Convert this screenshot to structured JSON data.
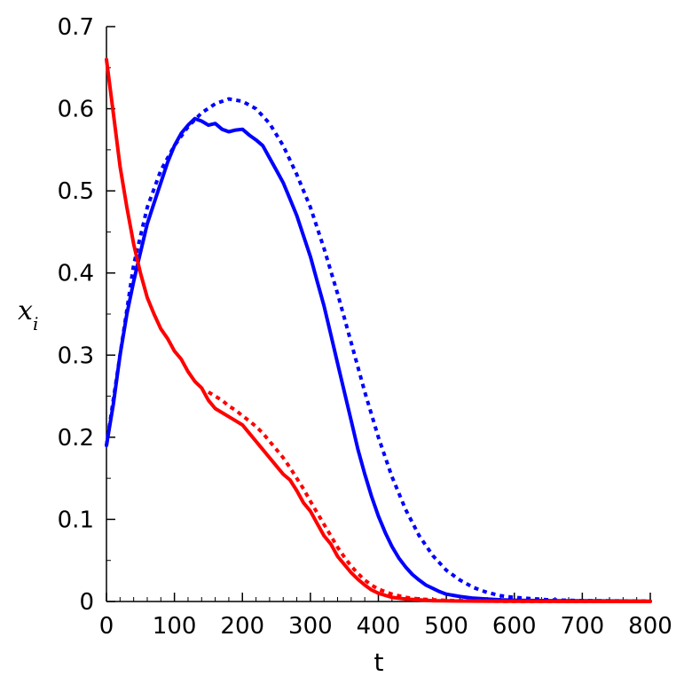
{
  "chart_data": {
    "type": "line",
    "title": "",
    "xlabel": "t",
    "ylabel": "x",
    "ylabel_subscript": "i",
    "xlim": [
      0,
      800
    ],
    "ylim": [
      0,
      0.7
    ],
    "xticks": [
      0,
      100,
      200,
      300,
      400,
      500,
      600,
      700,
      800
    ],
    "xtick_labels": [
      "0",
      "100",
      "200",
      "300",
      "400",
      "500",
      "600",
      "700",
      "800"
    ],
    "yticks": [
      0,
      0.1,
      0.2,
      0.3,
      0.4,
      0.5,
      0.6,
      0.7
    ],
    "ytick_labels": [
      "0",
      "0.1",
      "0.2",
      "0.3",
      "0.4",
      "0.5",
      "0.6",
      "0.7"
    ],
    "grid": false,
    "legend": "none",
    "series": [
      {
        "color": "#0000ff",
        "style": "solid",
        "x": [
          0,
          10,
          20,
          30,
          40,
          50,
          60,
          70,
          80,
          90,
          100,
          110,
          120,
          130,
          140,
          150,
          160,
          170,
          180,
          190,
          200,
          210,
          220,
          230,
          240,
          250,
          260,
          270,
          280,
          290,
          300,
          310,
          320,
          330,
          340,
          350,
          360,
          370,
          380,
          390,
          400,
          410,
          420,
          430,
          440,
          450,
          460,
          470,
          480,
          490,
          500,
          520,
          540,
          560,
          580,
          600,
          650,
          700,
          750,
          800
        ],
        "y": [
          0.19,
          0.24,
          0.3,
          0.35,
          0.39,
          0.425,
          0.46,
          0.485,
          0.51,
          0.535,
          0.555,
          0.57,
          0.58,
          0.588,
          0.585,
          0.58,
          0.582,
          0.575,
          0.572,
          0.574,
          0.575,
          0.568,
          0.562,
          0.555,
          0.54,
          0.525,
          0.51,
          0.49,
          0.47,
          0.445,
          0.42,
          0.39,
          0.36,
          0.325,
          0.29,
          0.255,
          0.22,
          0.185,
          0.155,
          0.128,
          0.104,
          0.084,
          0.067,
          0.053,
          0.042,
          0.033,
          0.026,
          0.02,
          0.016,
          0.012,
          0.009,
          0.006,
          0.004,
          0.003,
          0.002,
          0.0015,
          0.001,
          0.0008,
          0.0005,
          0.0003
        ]
      },
      {
        "color": "#0000ff",
        "style": "dotted",
        "x": [
          0,
          20,
          40,
          60,
          80,
          100,
          120,
          140,
          160,
          180,
          200,
          220,
          240,
          260,
          280,
          300,
          320,
          340,
          360,
          380,
          400,
          420,
          440,
          460,
          480,
          500,
          520,
          540,
          560,
          580,
          600,
          650,
          700,
          750,
          800
        ],
        "y": [
          0.19,
          0.3,
          0.41,
          0.48,
          0.525,
          0.555,
          0.578,
          0.595,
          0.606,
          0.612,
          0.609,
          0.6,
          0.582,
          0.555,
          0.52,
          0.48,
          0.43,
          0.375,
          0.315,
          0.255,
          0.2,
          0.152,
          0.112,
          0.08,
          0.056,
          0.038,
          0.026,
          0.017,
          0.011,
          0.007,
          0.005,
          0.002,
          0.001,
          0.0006,
          0.0003
        ]
      },
      {
        "color": "#ff0000",
        "style": "solid",
        "x": [
          0,
          10,
          20,
          30,
          40,
          50,
          60,
          70,
          80,
          90,
          100,
          110,
          120,
          130,
          140,
          150,
          160,
          170,
          180,
          190,
          200,
          210,
          220,
          230,
          240,
          250,
          260,
          270,
          280,
          290,
          300,
          310,
          320,
          330,
          340,
          350,
          360,
          370,
          380,
          390,
          400,
          420,
          440,
          460,
          480,
          500,
          550,
          600,
          700,
          800
        ],
        "y": [
          0.66,
          0.595,
          0.53,
          0.48,
          0.435,
          0.4,
          0.37,
          0.35,
          0.332,
          0.32,
          0.305,
          0.295,
          0.28,
          0.268,
          0.26,
          0.245,
          0.235,
          0.23,
          0.225,
          0.22,
          0.215,
          0.205,
          0.195,
          0.185,
          0.175,
          0.165,
          0.155,
          0.148,
          0.135,
          0.12,
          0.11,
          0.095,
          0.08,
          0.07,
          0.055,
          0.045,
          0.035,
          0.027,
          0.02,
          0.014,
          0.01,
          0.005,
          0.003,
          0.002,
          0.001,
          0.0008,
          0.0004,
          0.0002,
          0.0001,
          0
        ]
      },
      {
        "color": "#ff0000",
        "style": "dotted",
        "x": [
          150,
          160,
          170,
          180,
          190,
          200,
          210,
          220,
          230,
          240,
          250,
          260,
          270,
          280,
          290,
          300,
          310,
          320,
          330,
          340,
          350,
          360,
          370,
          380,
          390,
          400,
          420,
          440,
          460,
          480,
          500,
          550,
          600,
          650,
          700,
          750,
          800
        ],
        "y": [
          0.255,
          0.25,
          0.245,
          0.238,
          0.233,
          0.226,
          0.22,
          0.213,
          0.205,
          0.195,
          0.185,
          0.175,
          0.163,
          0.15,
          0.137,
          0.122,
          0.108,
          0.094,
          0.08,
          0.066,
          0.054,
          0.043,
          0.034,
          0.026,
          0.02,
          0.015,
          0.009,
          0.005,
          0.003,
          0.002,
          0.0013,
          0.0005,
          0.0002,
          0.0001,
          5e-05,
          0,
          0
        ]
      }
    ]
  }
}
